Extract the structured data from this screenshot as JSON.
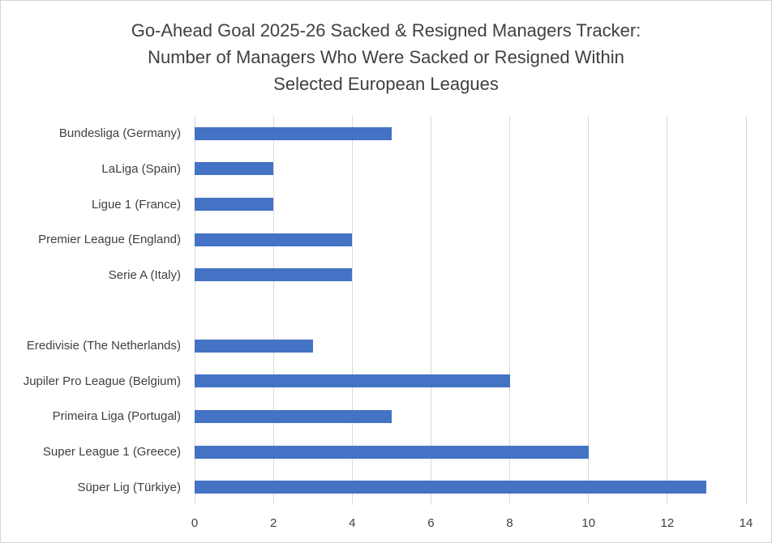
{
  "window": {
    "background": "#ffffff",
    "border_color": "#d6d6d6"
  },
  "chart_data": {
    "type": "bar",
    "orientation": "horizontal",
    "title": "Go-Ahead Goal 2025-26 Sacked & Resigned Managers Tracker: Number of Managers Who Were Sacked or Resigned Within Selected European Leagues",
    "title_lines": [
      "Go-Ahead Goal 2025-26 Sacked & Resigned Managers Tracker:",
      "Number of Managers Who Were Sacked or Resigned Within",
      "Selected European Leagues"
    ],
    "categories": [
      "Bundesliga (Germany)",
      "LaLiga (Spain)",
      "Ligue 1 (France)",
      "Premier League (England)",
      "Serie A (Italy)",
      "",
      "Eredivisie (The Netherlands)",
      "Jupiler Pro League (Belgium)",
      "Primeira Liga (Portugal)",
      "Super League 1 (Greece)",
      "Süper Lig (Türkiye)"
    ],
    "values": [
      5,
      2,
      2,
      4,
      4,
      null,
      3,
      8,
      5,
      10,
      13
    ],
    "xlabel": "",
    "ylabel": "",
    "xlim": [
      0,
      14
    ],
    "xticks": [
      0,
      2,
      4,
      6,
      8,
      10,
      12,
      14
    ],
    "grid": true,
    "legend": false,
    "bar_color": "#4472C4",
    "gridline_color": "#D9D9D9",
    "text_color": "#404040"
  }
}
